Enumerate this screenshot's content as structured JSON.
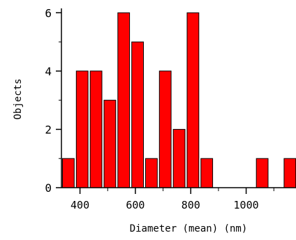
{
  "chart_data": {
    "type": "bar",
    "xlabel": "Diameter (mean)  (nm)",
    "ylabel": "Objects",
    "ylim": [
      0,
      6.15
    ],
    "xlim": [
      333,
      1180
    ],
    "x_ticks": [
      400,
      600,
      800,
      1000
    ],
    "y_ticks": [
      0,
      2,
      4,
      6
    ],
    "bin_width": 50,
    "bins": [
      {
        "start": 333,
        "value": 1
      },
      {
        "start": 383,
        "value": 4
      },
      {
        "start": 433,
        "value": 4
      },
      {
        "start": 483,
        "value": 3
      },
      {
        "start": 533,
        "value": 6
      },
      {
        "start": 583,
        "value": 5
      },
      {
        "start": 633,
        "value": 1
      },
      {
        "start": 683,
        "value": 4
      },
      {
        "start": 733,
        "value": 2
      },
      {
        "start": 783,
        "value": 6
      },
      {
        "start": 833,
        "value": 1
      },
      {
        "start": 1033,
        "value": 1
      },
      {
        "start": 1133,
        "value": 1
      }
    ],
    "bar_color": "#ff0000",
    "grid": false,
    "legend": "none"
  }
}
